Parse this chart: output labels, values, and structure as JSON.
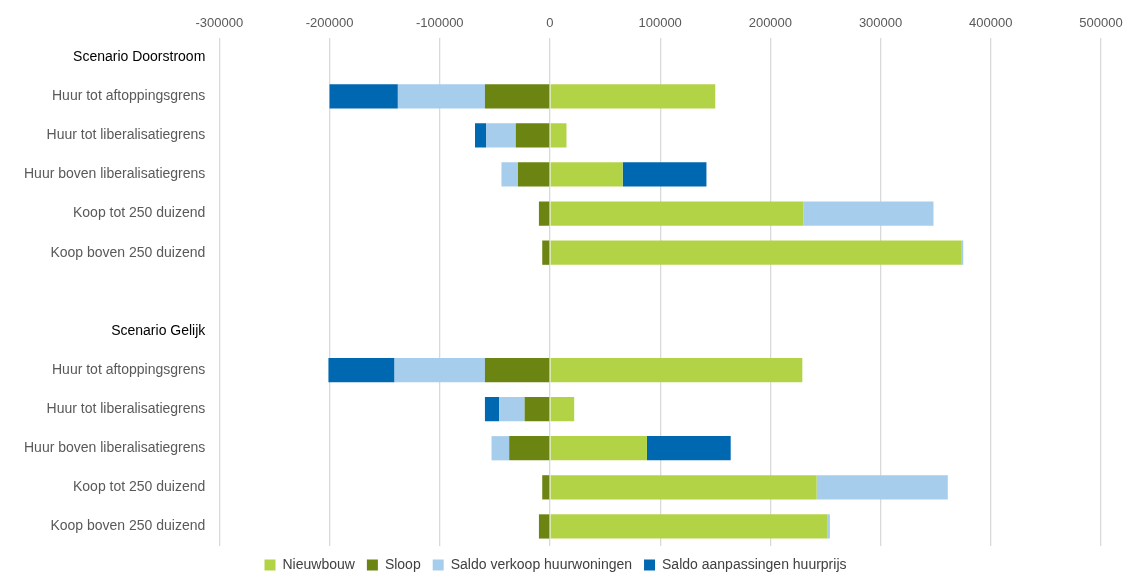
{
  "chart_data": {
    "type": "bar",
    "orientation": "horizontal",
    "stacked": true,
    "categories": [
      "Scenario Doorstroom",
      "Huur tot aftoppingsgrens",
      "Huur tot liberalisatiegrens",
      "Huur boven liberalisatiegrens",
      "Koop tot 250 duizend",
      "Koop boven 250 duizend",
      null,
      "Scenario Gelijk",
      "Huur tot aftoppingsgrens",
      "Huur tot liberalisatiegrens",
      "Huur boven liberalisatiegrens",
      "Koop tot 250 duizend",
      "Koop boven 250 duizend"
    ],
    "series": [
      {
        "name": "Nieuwbouw",
        "color": "#b3d347",
        "values": [
          null,
          150000,
          15000,
          66000,
          230000,
          373000,
          null,
          null,
          229000,
          22000,
          88000,
          242000,
          252000
        ]
      },
      {
        "name": "Sloop",
        "color": "#6b8412",
        "values": [
          null,
          -59000,
          -31000,
          -29000,
          -10000,
          -7000,
          null,
          null,
          -59000,
          -23000,
          -37000,
          -7000,
          -10000
        ]
      },
      {
        "name": "Saldo verkoop huurwoningen",
        "color": "#a7cdec",
        "values": [
          null,
          -79000,
          -27000,
          -15000,
          118000,
          2000,
          null,
          null,
          -82000,
          -23000,
          -16000,
          119000,
          2000
        ]
      },
      {
        "name": "Saldo aanpassingen huurprijs",
        "color": "#0068b1",
        "values": [
          null,
          -62000,
          -10000,
          76000,
          null,
          null,
          null,
          null,
          -60000,
          -13000,
          76000,
          null,
          null
        ]
      }
    ],
    "xlim": [
      -300000,
      500000
    ],
    "xticks": [
      -300000,
      -200000,
      -100000,
      0,
      100000,
      200000,
      300000,
      400000,
      500000
    ],
    "grid": "x",
    "legend": "bottom"
  }
}
